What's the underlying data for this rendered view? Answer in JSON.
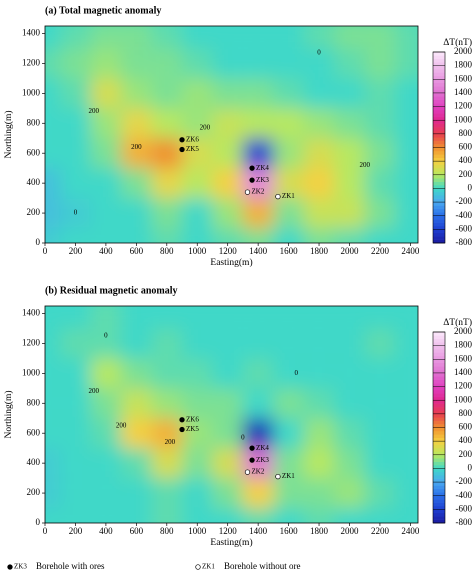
{
  "chart_data": [
    {
      "type": "contour",
      "title": "(a) Total magnetic anomaly",
      "x_label": "Easting(m)",
      "y_label": "Northing(m)",
      "xlim": [
        0,
        2450
      ],
      "ylim": [
        0,
        1450
      ],
      "xticks": [
        0,
        200,
        400,
        600,
        800,
        1000,
        1200,
        1400,
        1600,
        1800,
        2000,
        2200,
        2400
      ],
      "yticks": [
        0,
        200,
        400,
        600,
        800,
        1000,
        1200,
        1400
      ],
      "x": [
        0,
        200,
        400,
        600,
        800,
        1000,
        1200,
        1400,
        1600,
        1800,
        2000,
        2200,
        2400
      ],
      "y": [
        0,
        200,
        400,
        600,
        800,
        1000,
        1200,
        1400
      ],
      "z": [
        [
          -50,
          0,
          0,
          0,
          50,
          0,
          50,
          100,
          0,
          100,
          50,
          0,
          0
        ],
        [
          -100,
          -50,
          0,
          0,
          100,
          0,
          150,
          500,
          100,
          250,
          250,
          100,
          0
        ],
        [
          -100,
          0,
          0,
          100,
          350,
          200,
          400,
          1500,
          300,
          400,
          200,
          50,
          0
        ],
        [
          0,
          0,
          100,
          500,
          600,
          300,
          200,
          -600,
          150,
          300,
          200,
          100,
          0
        ],
        [
          0,
          0,
          150,
          350,
          200,
          150,
          250,
          200,
          200,
          150,
          100,
          50,
          0
        ],
        [
          0,
          50,
          300,
          150,
          100,
          150,
          100,
          100,
          50,
          0,
          0,
          50,
          0
        ],
        [
          50,
          100,
          150,
          100,
          100,
          50,
          0,
          0,
          0,
          0,
          50,
          100,
          50
        ],
        [
          0,
          50,
          100,
          100,
          50,
          0,
          0,
          0,
          0,
          50,
          100,
          100,
          50
        ]
      ],
      "colorbar_label": "ΔT(nT)",
      "cticks": [
        -800,
        -600,
        -400,
        -200,
        0,
        200,
        400,
        600,
        800,
        1000,
        1200,
        1400,
        1600,
        1800,
        2000
      ],
      "colors": [
        "#1a1aa0",
        "#1f3fd0",
        "#2a6ee8",
        "#4aa8f0",
        "#40d8c8",
        "#b8e860",
        "#f5d040",
        "#f09030",
        "#e84050",
        "#e02890",
        "#e040c0",
        "#e070d0",
        "#e898e0",
        "#f0c0ec",
        "#fbe8fb"
      ],
      "contour_labels": [
        {
          "x": 320,
          "y": 880,
          "value": 200
        },
        {
          "x": 600,
          "y": 640,
          "value": 200
        },
        {
          "x": 1050,
          "y": 770,
          "value": 200
        },
        {
          "x": 2100,
          "y": 520,
          "value": 200
        },
        {
          "x": 1800,
          "y": 1270,
          "value": 0
        },
        {
          "x": 200,
          "y": 200,
          "value": 0
        }
      ],
      "boreholes": [
        {
          "name": "ZK6",
          "x": 900,
          "y": 690,
          "ore": true
        },
        {
          "name": "ZK5",
          "x": 900,
          "y": 625,
          "ore": true
        },
        {
          "name": "ZK4",
          "x": 1360,
          "y": 500,
          "ore": true
        },
        {
          "name": "ZK3",
          "x": 1360,
          "y": 420,
          "ore": true
        },
        {
          "name": "ZK2",
          "x": 1330,
          "y": 340,
          "ore": false
        },
        {
          "name": "ZK1",
          "x": 1530,
          "y": 310,
          "ore": false
        }
      ]
    },
    {
      "type": "contour",
      "title": "(b) Residual magnetic anomaly",
      "x_label": "Easting(m)",
      "y_label": "Northing(m)",
      "xlim": [
        0,
        2450
      ],
      "ylim": [
        0,
        1450
      ],
      "xticks": [
        0,
        200,
        400,
        600,
        800,
        1000,
        1200,
        1400,
        1600,
        1800,
        2000,
        2200,
        2400
      ],
      "yticks": [
        0,
        200,
        400,
        600,
        800,
        1000,
        1200,
        1400
      ],
      "x": [
        0,
        200,
        400,
        600,
        800,
        1000,
        1200,
        1400,
        1600,
        1800,
        2000,
        2200,
        2400
      ],
      "y": [
        0,
        200,
        400,
        600,
        800,
        1000,
        1200,
        1400
      ],
      "z": [
        [
          0,
          0,
          0,
          0,
          50,
          0,
          0,
          50,
          0,
          50,
          0,
          0,
          0
        ],
        [
          -50,
          0,
          0,
          0,
          50,
          0,
          100,
          400,
          100,
          100,
          150,
          50,
          0
        ],
        [
          -50,
          0,
          0,
          50,
          300,
          100,
          300,
          1400,
          100,
          200,
          100,
          0,
          0
        ],
        [
          0,
          0,
          50,
          400,
          500,
          150,
          100,
          -700,
          0,
          150,
          50,
          0,
          0
        ],
        [
          0,
          0,
          100,
          250,
          150,
          100,
          100,
          0,
          100,
          50,
          0,
          0,
          0
        ],
        [
          0,
          0,
          200,
          100,
          50,
          50,
          0,
          50,
          0,
          0,
          0,
          0,
          0
        ],
        [
          0,
          50,
          50,
          0,
          50,
          0,
          0,
          0,
          0,
          0,
          0,
          50,
          0
        ],
        [
          0,
          0,
          50,
          0,
          0,
          0,
          0,
          0,
          0,
          0,
          0,
          0,
          0
        ]
      ],
      "colorbar_label": "ΔT(nT)",
      "cticks": [
        -800,
        -600,
        -400,
        -200,
        0,
        200,
        400,
        600,
        800,
        1000,
        1200,
        1400,
        1600,
        1800,
        2000
      ],
      "colors": [
        "#1a1aa0",
        "#1f3fd0",
        "#2a6ee8",
        "#4aa8f0",
        "#40d8c8",
        "#b8e860",
        "#f5d040",
        "#f09030",
        "#e84050",
        "#e02890",
        "#e040c0",
        "#e070d0",
        "#e898e0",
        "#f0c0ec",
        "#fbe8fb"
      ],
      "contour_labels": [
        {
          "x": 320,
          "y": 880,
          "value": 200
        },
        {
          "x": 500,
          "y": 650,
          "value": 200
        },
        {
          "x": 820,
          "y": 540,
          "value": 200
        },
        {
          "x": 1300,
          "y": 570,
          "value": 0
        },
        {
          "x": 1650,
          "y": 1000,
          "value": 0
        },
        {
          "x": 400,
          "y": 1250,
          "value": 0
        }
      ],
      "boreholes": [
        {
          "name": "ZK6",
          "x": 900,
          "y": 690,
          "ore": true
        },
        {
          "name": "ZK5",
          "x": 900,
          "y": 625,
          "ore": true
        },
        {
          "name": "ZK4",
          "x": 1360,
          "y": 500,
          "ore": true
        },
        {
          "name": "ZK3",
          "x": 1360,
          "y": 420,
          "ore": true
        },
        {
          "name": "ZK2",
          "x": 1330,
          "y": 340,
          "ore": false
        },
        {
          "name": "ZK1",
          "x": 1530,
          "y": 310,
          "ore": false
        }
      ]
    }
  ],
  "legend": [
    {
      "marker": "ZK3",
      "label": "Borehole with ores",
      "ore": true
    },
    {
      "marker": "ZK1",
      "label": "Borehole without ore",
      "ore": false
    }
  ]
}
